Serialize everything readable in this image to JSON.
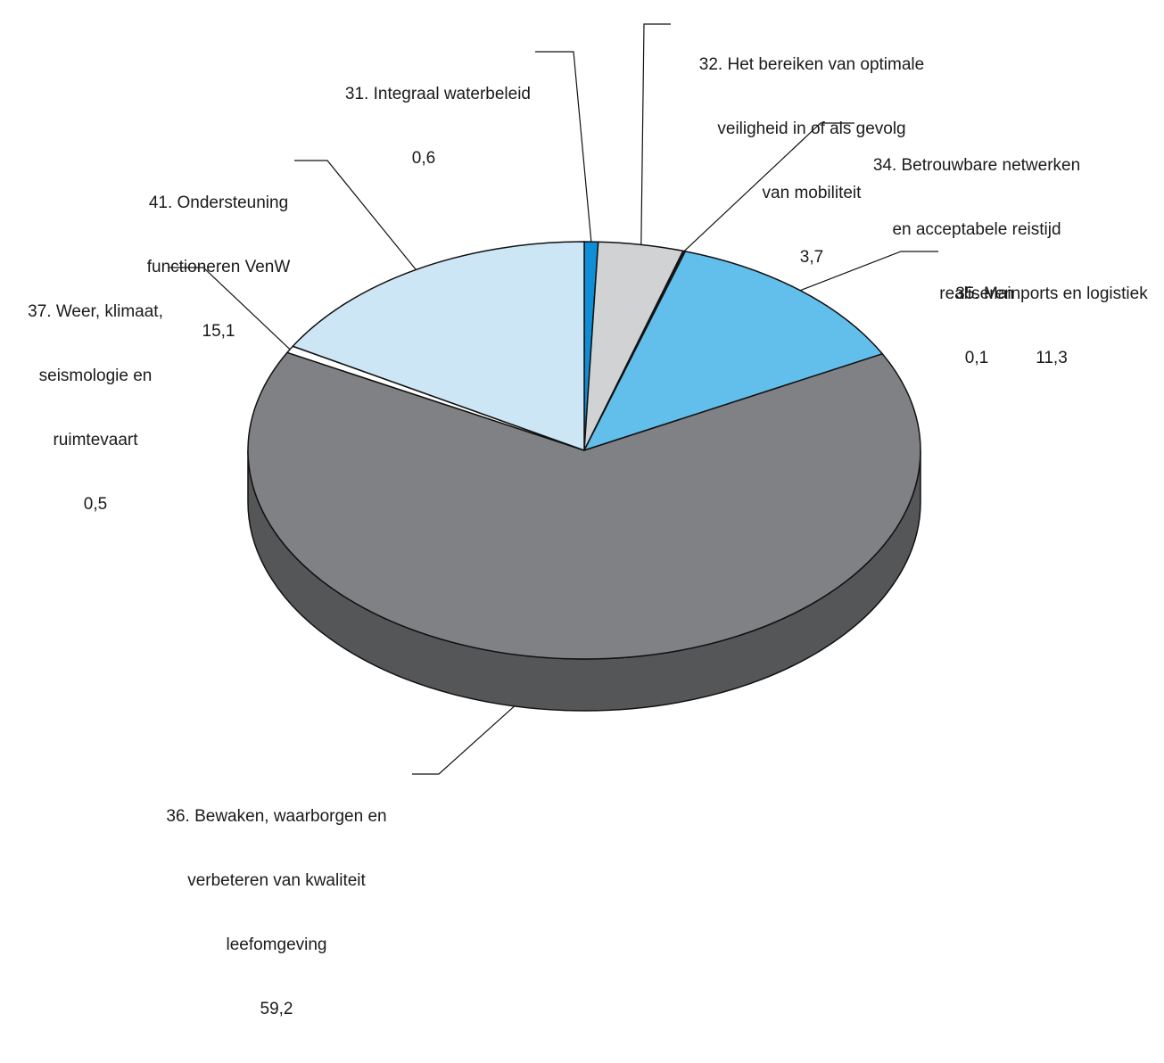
{
  "chart_data": {
    "type": "pie",
    "style": "3d",
    "start_angle_deg": 90,
    "direction": "clockwise",
    "slices": [
      {
        "name": "31. Integraal waterbeleid",
        "value": 0.6,
        "value_label": "0,6",
        "color": "#0d8ed6"
      },
      {
        "name": "32. Het bereiken van optimale veiligheid in of als gevolg van mobiliteit",
        "value": 3.7,
        "value_label": "3,7",
        "color": "#d1d2d4"
      },
      {
        "name": "34. Betrouwbare netwerken en acceptabele reistijd realiseren",
        "value": 0.1,
        "value_label": "0,1",
        "color": "#1f1f1f"
      },
      {
        "name": "35. Mainports en logistiek",
        "value": 11.3,
        "value_label": "11,3",
        "color": "#62bfeb"
      },
      {
        "name": "36. Bewaken, waarborgen en verbeteren van kwaliteit leefomgeving",
        "value": 59.2,
        "value_label": "59,2",
        "color": "#808185"
      },
      {
        "name": "37. Weer, klimaat, seismologie en ruimtevaart",
        "value": 0.5,
        "value_label": "0,5",
        "color": "#ffffff"
      },
      {
        "name": "41. Ondersteuning functioneren VenW",
        "value": 15.1,
        "value_label": "15,1",
        "color": "#cde6f6"
      }
    ],
    "side_color": "#555658"
  },
  "labels": {
    "s31": {
      "lines": [
        "31. Integraal waterbeleid",
        "0,6"
      ]
    },
    "s32": {
      "lines": [
        "32. Het bereiken van optimale",
        "veiligheid in of als gevolg",
        "van mobiliteit",
        "3,7"
      ]
    },
    "s34": {
      "lines": [
        "34. Betrouwbare netwerken",
        "en acceptabele reistijd",
        "realiseren",
        "0,1"
      ]
    },
    "s35": {
      "lines": [
        "35. Mainports en logistiek",
        "11,3"
      ]
    },
    "s36": {
      "lines": [
        "36. Bewaken, waarborgen en",
        "verbeteren van kwaliteit",
        "leefomgeving",
        "59,2"
      ]
    },
    "s37": {
      "lines": [
        "37. Weer, klimaat,",
        "seismologie en",
        "ruimtevaart",
        "0,5"
      ]
    },
    "s41": {
      "lines": [
        "41. Ondersteuning",
        "functioneren VenW",
        "15,1"
      ]
    }
  }
}
